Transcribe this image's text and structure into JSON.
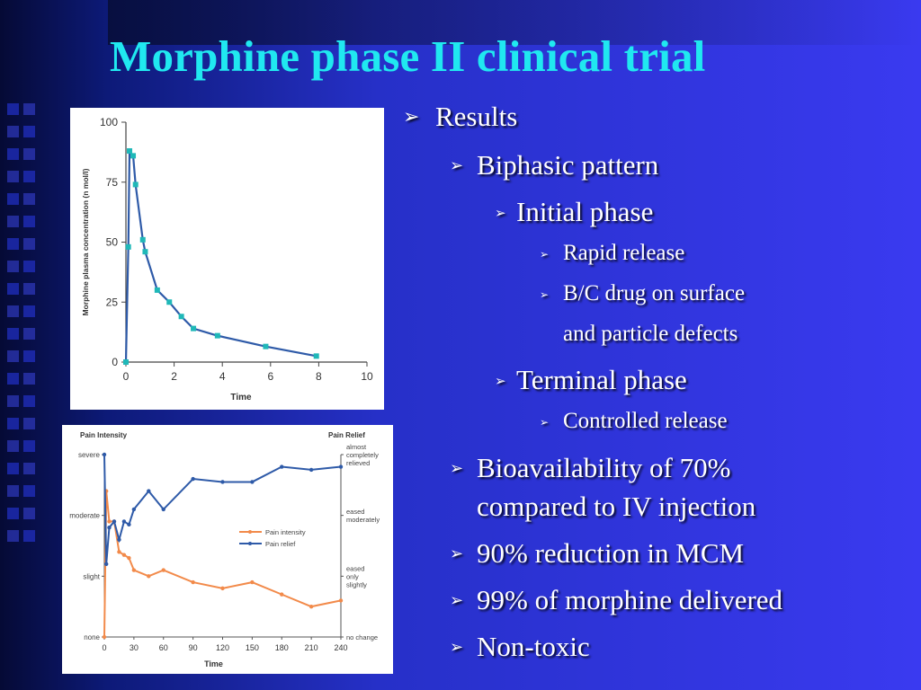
{
  "title": "Morphine phase II clinical trial",
  "bullets": [
    {
      "level": 1,
      "text": "Results"
    },
    {
      "level": 2,
      "text": "Biphasic pattern"
    },
    {
      "level": 3,
      "text": "Initial phase"
    },
    {
      "level": 4,
      "text": "Rapid release"
    },
    {
      "level": 4,
      "text": "B/C drug on surface"
    },
    {
      "level": 4,
      "text": "and particle defects",
      "continuation": true
    },
    {
      "level": 3,
      "text": "Terminal phase"
    },
    {
      "level": 4,
      "text": "Controlled release"
    },
    {
      "level": 2,
      "text": "Bioavailability of 70%"
    },
    {
      "level": 2,
      "text": "compared to IV injection",
      "continuation": true
    },
    {
      "level": 2,
      "text": "90% reduction in MCM"
    },
    {
      "level": 2,
      "text": "99% of morphine delivered"
    },
    {
      "level": 2,
      "text": "Non-toxic"
    }
  ],
  "colors": {
    "title": "#20e8f0",
    "bullet_text": "#ffffff",
    "chart1_line": "#2e5aa8",
    "chart1_marker": "#1fb8b8",
    "pain_intensity": "#f28a4a",
    "pain_relief": "#2e5aa8"
  },
  "chart_data": [
    {
      "type": "line",
      "title": "",
      "xlabel": "Time",
      "ylabel": "Morphine plasma concentration (n mol/l)",
      "xlim": [
        0,
        10
      ],
      "ylim": [
        0,
        100
      ],
      "x_ticks": [
        0,
        2,
        4,
        6,
        8,
        10
      ],
      "y_ticks": [
        0,
        25,
        50,
        75,
        100
      ],
      "series": [
        {
          "x": [
            0,
            0.1,
            0.15,
            0.3,
            0.4,
            0.7,
            0.8,
            1.3,
            1.8,
            2.3,
            2.8,
            3.8,
            5.8,
            7.9
          ],
          "y": [
            0,
            48,
            88,
            86,
            74,
            51,
            46,
            30,
            25,
            19,
            14,
            11,
            6.5,
            2.5
          ]
        }
      ]
    },
    {
      "type": "line",
      "title": "",
      "xlabel": "Time",
      "ylabel_left": "Pain Intensity",
      "ylabel_right": "Pain Relief",
      "xlim": [
        0,
        240
      ],
      "x_ticks": [
        0,
        30,
        60,
        90,
        120,
        150,
        180,
        210,
        240
      ],
      "y_ticks_left": [
        "none",
        "slight",
        "moderate",
        "severe"
      ],
      "y_ticks_right": [
        "no change",
        "eased only slightly",
        "eased moderately",
        "almost completely relieved"
      ],
      "ylim": [
        0,
        3
      ],
      "legend": "center-right",
      "series": [
        {
          "name": "Pain intensity",
          "x": [
            0,
            2,
            5,
            10,
            15,
            20,
            25,
            30,
            45,
            60,
            90,
            120,
            150,
            180,
            210,
            240
          ],
          "y": [
            0,
            2.4,
            1.9,
            1.9,
            1.4,
            1.35,
            1.3,
            1.1,
            1.0,
            1.1,
            0.9,
            0.8,
            0.9,
            0.7,
            0.5,
            0.6
          ]
        },
        {
          "name": "Pain relief",
          "x": [
            0,
            2,
            5,
            10,
            15,
            20,
            25,
            30,
            45,
            60,
            90,
            120,
            150,
            180,
            210,
            240
          ],
          "y": [
            3,
            1.2,
            1.8,
            1.9,
            1.6,
            1.9,
            1.85,
            2.1,
            2.4,
            2.1,
            2.6,
            2.55,
            2.55,
            2.8,
            2.75,
            2.8
          ],
          "y_axis": "right"
        }
      ]
    }
  ]
}
